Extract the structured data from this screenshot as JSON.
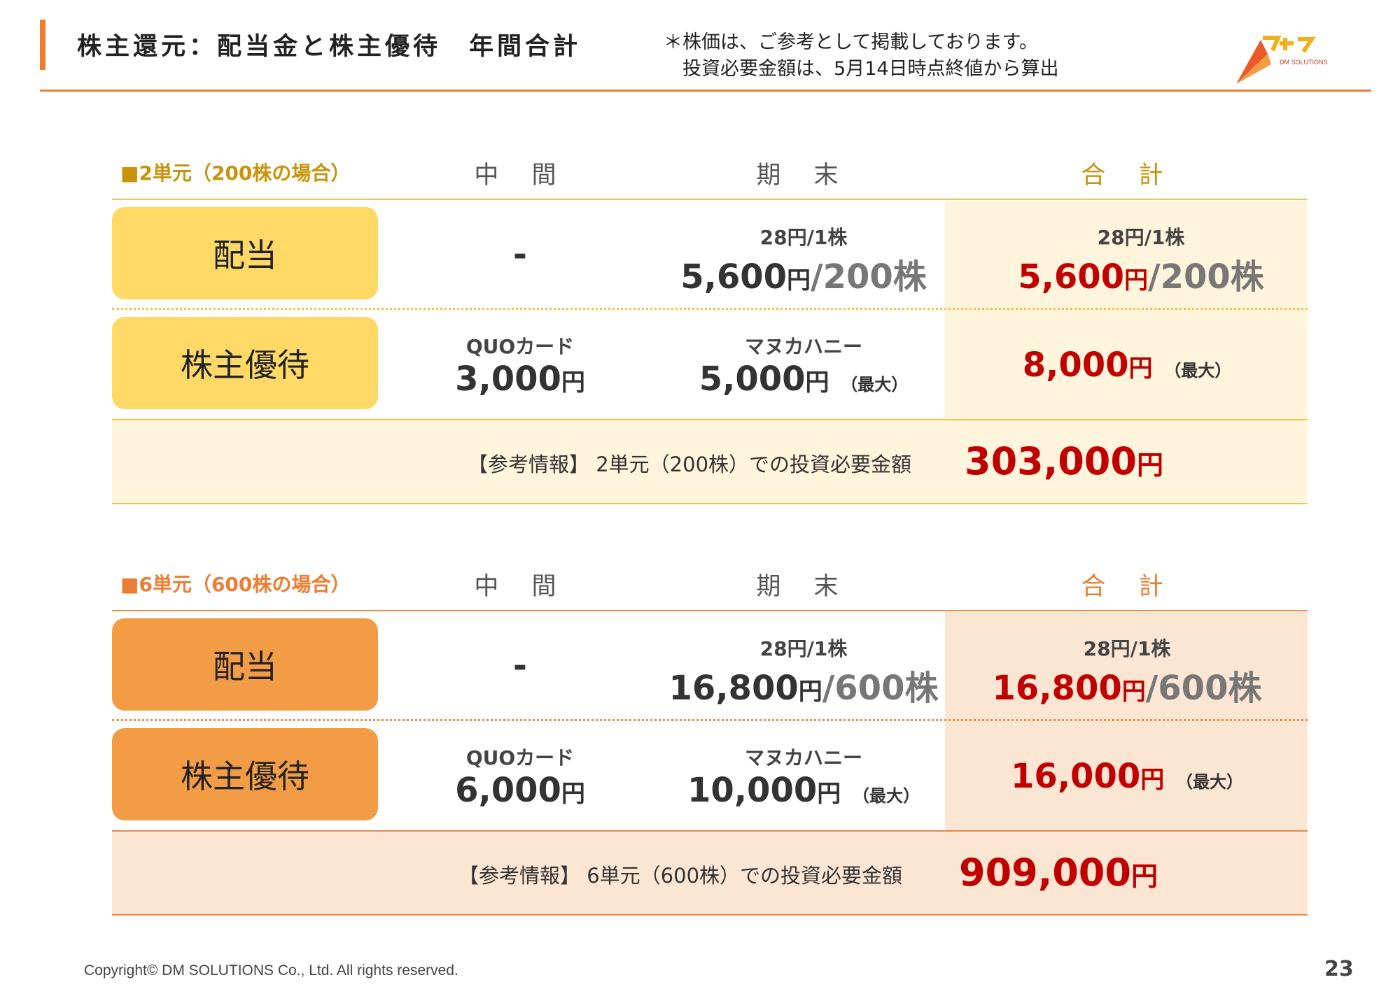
{
  "header": {
    "title": "株主還元：配当金と株主優待　年間合計",
    "note_line1": "＊株価は、ご参考として掲載しております。",
    "note_line2": "　投資必要金額は、5月14日時点終値から算出",
    "logo_text": "DM SOLUTIONS"
  },
  "colors": {
    "accent_orange": "#ec7d32",
    "section1_label": "#c9930a",
    "section1_pill": "#ffd966",
    "section1_bg": "#fff5dc",
    "section1_rule": "#f3c345",
    "section2_label": "#ec7d32",
    "section2_pill": "#f29c45",
    "section2_bg": "#fbe6d4",
    "section2_rule": "#ee8a47",
    "value_red": "#c00000"
  },
  "sections": [
    {
      "label": "■2単元（200株の場合）",
      "col_mid": "中 間",
      "col_end": "期 末",
      "col_total": "合 計",
      "dividend": {
        "row_label": "配当",
        "mid": "-",
        "end_per": "28円/1株",
        "end_amount": "5,600",
        "end_unit": "円",
        "end_shares": "/200株",
        "total_per": "28円/1株",
        "total_amount": "5,600",
        "total_unit": "円",
        "total_shares": "/200株"
      },
      "benefit": {
        "row_label": "株主優待",
        "mid_label": "QUOカード",
        "mid_amount": "3,000",
        "mid_unit": "円",
        "end_label": "マヌカハニー",
        "end_amount": "5,000",
        "end_unit": "円",
        "end_max": "（最大）",
        "total_amount": "8,000",
        "total_unit": "円",
        "total_max": "（最大）"
      },
      "reference": {
        "text": "【参考情報】 2単元（200株）での投資必要金額",
        "amount": "303,000",
        "unit": "円"
      }
    },
    {
      "label": "■6単元（600株の場合）",
      "col_mid": "中 間",
      "col_end": "期 末",
      "col_total": "合 計",
      "dividend": {
        "row_label": "配当",
        "mid": "-",
        "end_per": "28円/1株",
        "end_amount": "16,800",
        "end_unit": "円",
        "end_shares": "/600株",
        "total_per": "28円/1株",
        "total_amount": "16,800",
        "total_unit": "円",
        "total_shares": "/600株"
      },
      "benefit": {
        "row_label": "株主優待",
        "mid_label": "QUOカード",
        "mid_amount": "6,000",
        "mid_unit": "円",
        "end_label": "マヌカハニー",
        "end_amount": "10,000",
        "end_unit": "円",
        "end_max": "（最大）",
        "total_amount": "16,000",
        "total_unit": "円",
        "total_max": "（最大）"
      },
      "reference": {
        "text": "【参考情報】 6単元（600株）での投資必要金額",
        "amount": "909,000",
        "unit": "円"
      }
    }
  ],
  "footer": {
    "copyright": "Copyright© DM SOLUTIONS Co., Ltd. All rights reserved.",
    "page_number": "23"
  }
}
